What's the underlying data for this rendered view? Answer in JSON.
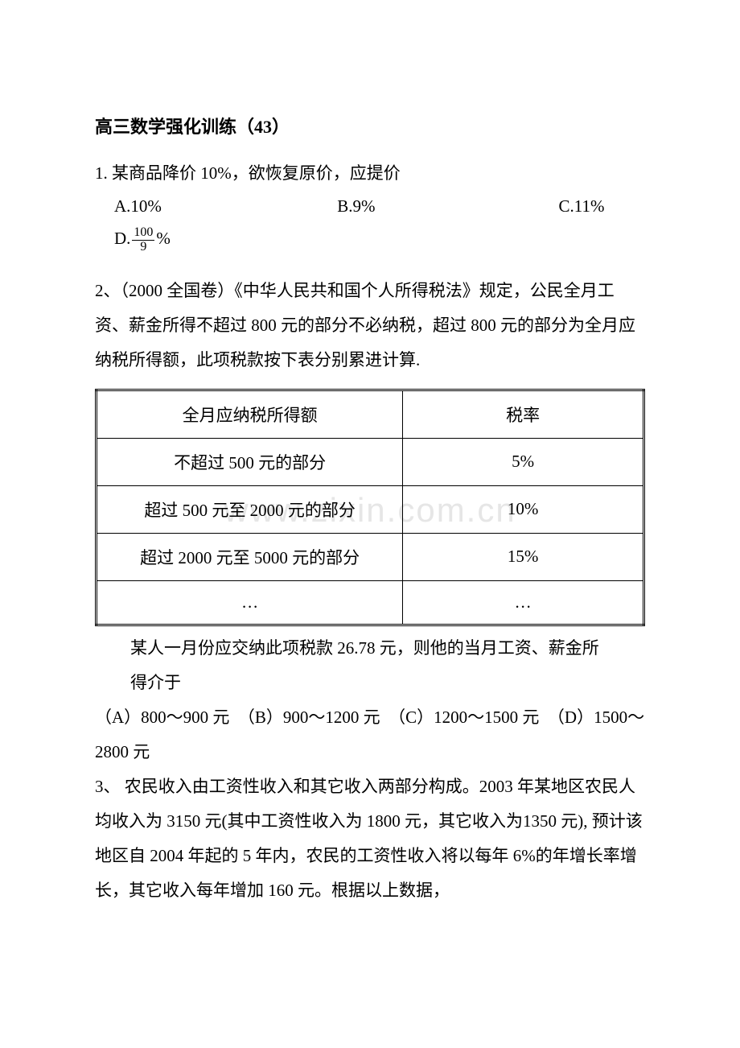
{
  "title": "高三数学强化训练（43）",
  "q1": {
    "stem": "1. 某商品降价 10%，欲恢复原价，应提价",
    "optA": "A.10%",
    "optB": "B.9%",
    "optC": "C.11%",
    "optD_prefix": "D.",
    "optD_num": "100",
    "optD_den": "9",
    "optD_suffix": "%"
  },
  "q2": {
    "stem": "2、（2000 全国卷）《中华人民共和国个人所得税法》规定，公民全月工资、薪金所得不超过 800 元的部分不必纳税，超过 800 元的部分为全月应纳税所得额，此项税款按下表分别累进计算.",
    "table": {
      "header1": "全月应纳税所得额",
      "header2": "税率",
      "rows": [
        [
          "不超过 500 元的部分",
          "5%"
        ],
        [
          "超过 500 元至 2000 元的部分",
          "10%"
        ],
        [
          "超过 2000 元至 5000 元的部分",
          "15%"
        ],
        [
          "…",
          "…"
        ]
      ]
    },
    "after_table": "某人一月份应交纳此项税款 26.78 元，则他的当月工资、薪金所",
    "after_table2": "得介于",
    "options": "（A）800～900 元　（B）900～1200 元　（C）1200～1500 元　（D）1500～2800 元"
  },
  "q3": {
    "stem": "3、 农民收入由工资性收入和其它收入两部分构成。2003 年某地区农民人均收入为 3150 元(其中工资性收入为 1800 元，其它收入为1350 元), 预计该地区自 2004 年起的 5 年内，农民的工资性收入将以每年 6%的年增长率增长，其它收入每年增加 160 元。根据以上数据，"
  },
  "watermark": "www.zixin.com.cn"
}
